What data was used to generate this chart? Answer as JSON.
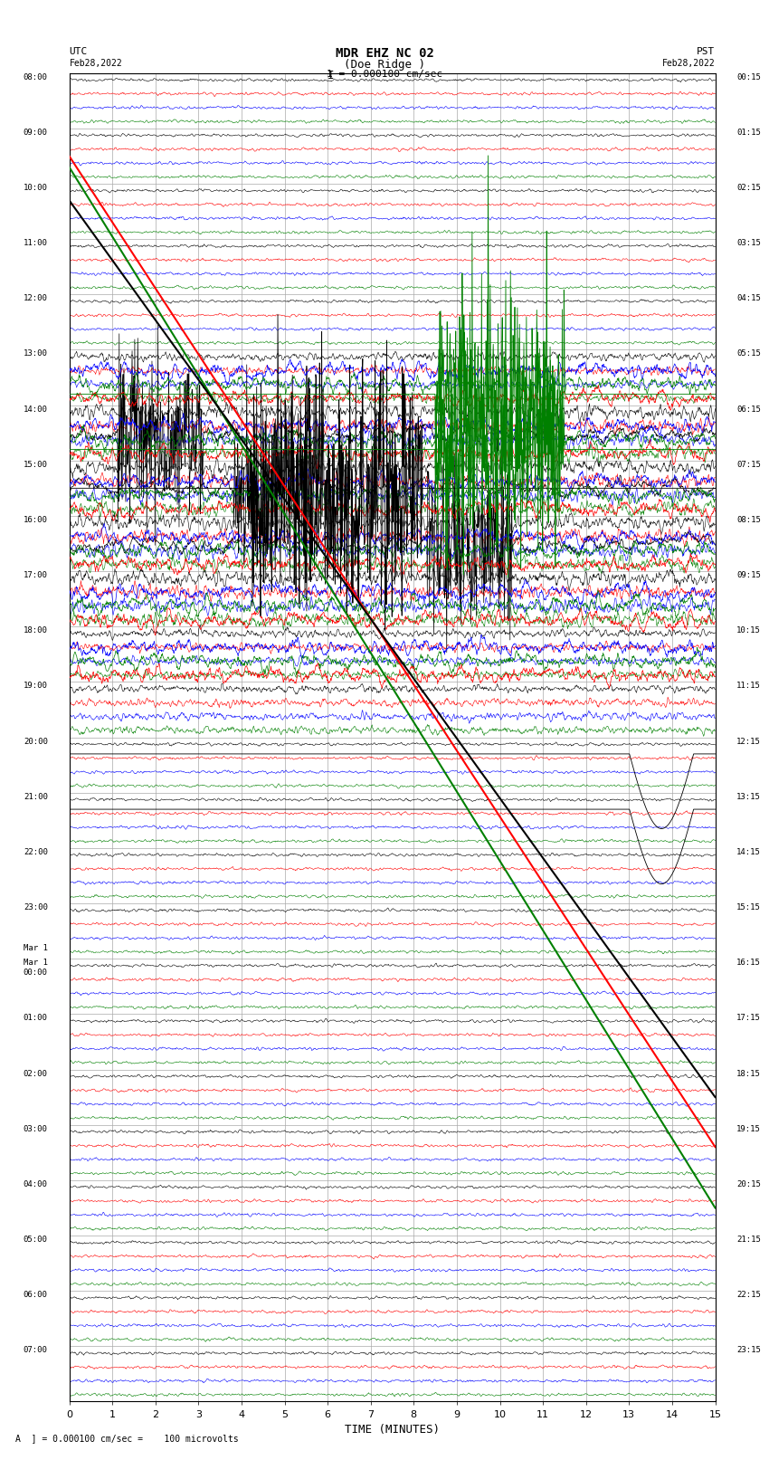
{
  "title_line1": "MDR EHZ NC 02",
  "title_line2": "(Doe Ridge )",
  "scale_text": "1 = 0.000100 cm/sec",
  "left_label": "UTC\nFeb28,2022",
  "right_label": "PST\nFeb28,2022",
  "xlabel": "TIME (MINUTES)",
  "footer_text": "A  ] = 0.000100 cm/sec =    100 microvolts",
  "utc_times_left": [
    "08:00",
    "09:00",
    "10:00",
    "11:00",
    "12:00",
    "13:00",
    "14:00",
    "15:00",
    "16:00",
    "17:00",
    "18:00",
    "19:00",
    "20:00",
    "21:00",
    "22:00",
    "23:00",
    "Mar 1\n00:00",
    "01:00",
    "02:00",
    "03:00",
    "04:00",
    "05:00",
    "06:00",
    "07:00"
  ],
  "pst_times_right": [
    "00:15",
    "01:15",
    "02:15",
    "03:15",
    "04:15",
    "05:15",
    "06:15",
    "07:15",
    "08:15",
    "09:15",
    "10:15",
    "11:15",
    "12:15",
    "13:15",
    "14:15",
    "15:15",
    "16:15",
    "17:15",
    "18:15",
    "19:15",
    "20:15",
    "21:15",
    "22:15",
    "23:15"
  ],
  "xmin": 0,
  "xmax": 15,
  "num_rows": 24,
  "row_colors": [
    "black",
    "red",
    "blue",
    "green"
  ],
  "bg_color": "white",
  "grid_color": "#aaaaaa",
  "fig_width": 8.5,
  "fig_height": 16.13,
  "dpi": 100
}
